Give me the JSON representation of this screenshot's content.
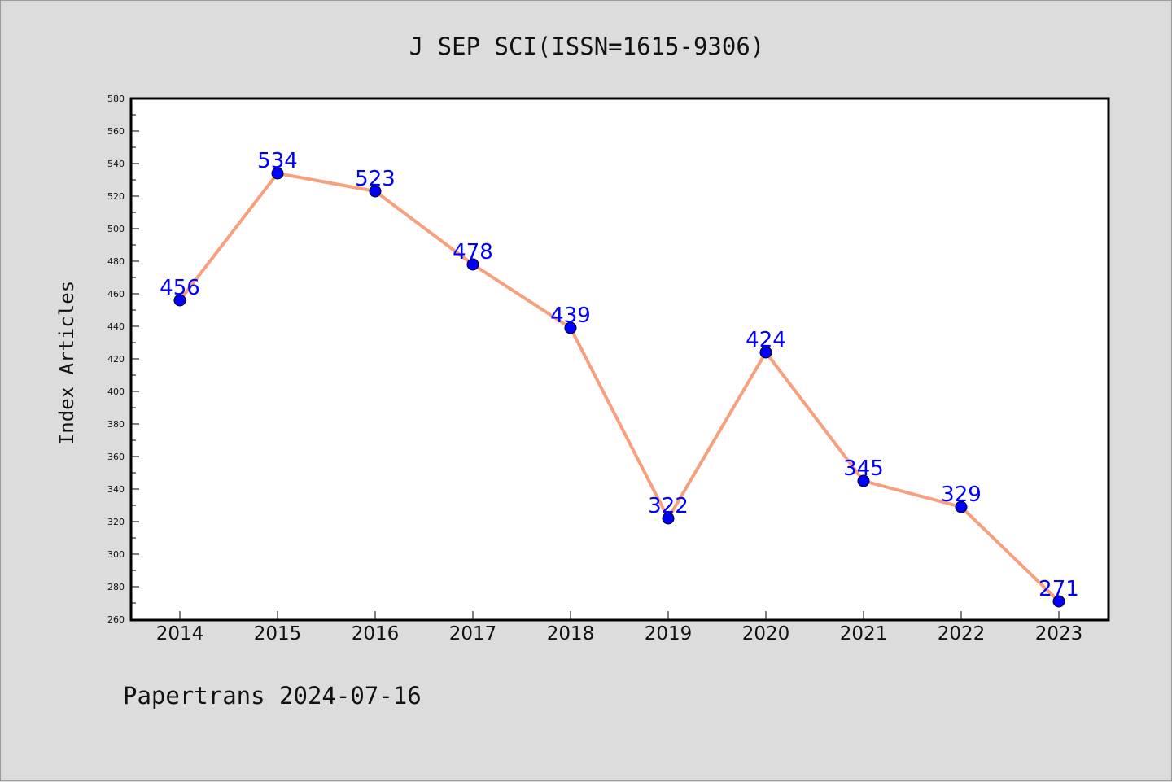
{
  "chart_data": {
    "type": "line",
    "title": "J SEP SCI(ISSN=1615-9306)",
    "ylabel": "Index Articles",
    "xlabel": "",
    "categories": [
      "2014",
      "2015",
      "2016",
      "2017",
      "2018",
      "2019",
      "2020",
      "2021",
      "2022",
      "2023"
    ],
    "values": [
      456,
      534,
      523,
      478,
      439,
      322,
      424,
      345,
      329,
      271
    ],
    "data_labels": [
      "456",
      "534",
      "523",
      "478",
      "439",
      "322",
      "424",
      "345",
      "329",
      "271"
    ],
    "ylim": [
      260,
      580
    ],
    "y_ticks": [
      "260",
      "280",
      "300",
      "320",
      "340",
      "360",
      "380",
      "400",
      "420",
      "440",
      "460",
      "480",
      "500",
      "520",
      "540",
      "560",
      "580"
    ],
    "grid": false,
    "legend": "none",
    "colors": {
      "line": "#f8a07e",
      "marker": "#0000ff",
      "label": "#0000ff",
      "background": "#dcdcdc",
      "plot_background": "#ffffff"
    }
  },
  "footer": "Papertrans 2024-07-16"
}
